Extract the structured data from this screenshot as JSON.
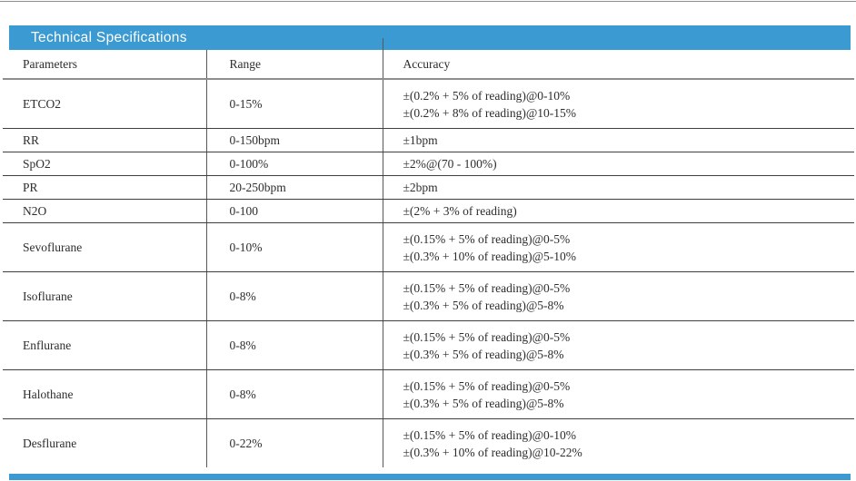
{
  "section": {
    "title": "Technical Specifications"
  },
  "table": {
    "columns": [
      "Parameters",
      "Range",
      "Accuracy"
    ],
    "rows": [
      {
        "parameter": "ETCO2",
        "range": "0-15%",
        "accuracy": [
          "±(0.2% + 5% of reading)@0-10%",
          "±(0.2% + 8% of reading)@10-15%"
        ]
      },
      {
        "parameter": "RR",
        "range": "0-150bpm",
        "accuracy": [
          "±1bpm"
        ]
      },
      {
        "parameter": "SpO2",
        "range": "0-100%",
        "accuracy": [
          "±2%@(70 - 100%)"
        ]
      },
      {
        "parameter": "PR",
        "range": "20-250bpm",
        "accuracy": [
          "±2bpm"
        ]
      },
      {
        "parameter": "N2O",
        "range": "0-100",
        "accuracy": [
          "±(2% + 3% of reading)"
        ]
      },
      {
        "parameter": "Sevoflurane",
        "range": "0-10%",
        "accuracy": [
          "±(0.15% + 5% of reading)@0-5%",
          "±(0.3% + 10% of reading)@5-10%"
        ]
      },
      {
        "parameter": "Isoflurane",
        "range": "0-8%",
        "accuracy": [
          "±(0.15% + 5% of reading)@0-5%",
          "±(0.3% + 5% of reading)@5-8%"
        ]
      },
      {
        "parameter": "Enflurane",
        "range": "0-8%",
        "accuracy": [
          "±(0.15% + 5% of reading)@0-5%",
          "±(0.3% + 5% of reading)@5-8%"
        ]
      },
      {
        "parameter": "Halothane",
        "range": "0-8%",
        "accuracy": [
          "±(0.15% + 5% of reading)@0-5%",
          "±(0.3% + 5% of reading)@5-8%"
        ]
      },
      {
        "parameter": "Desflurane",
        "range": "0-22%",
        "accuracy": [
          "±(0.15% + 5% of reading)@0-10%",
          "±(0.3% + 10% of reading)@10-22%"
        ]
      }
    ]
  },
  "colors": {
    "accent_blue": "#3a9ad1",
    "line_dark": "#3f3f3f",
    "line_gray": "#8d8d8d",
    "text": "#2d2d2d"
  }
}
